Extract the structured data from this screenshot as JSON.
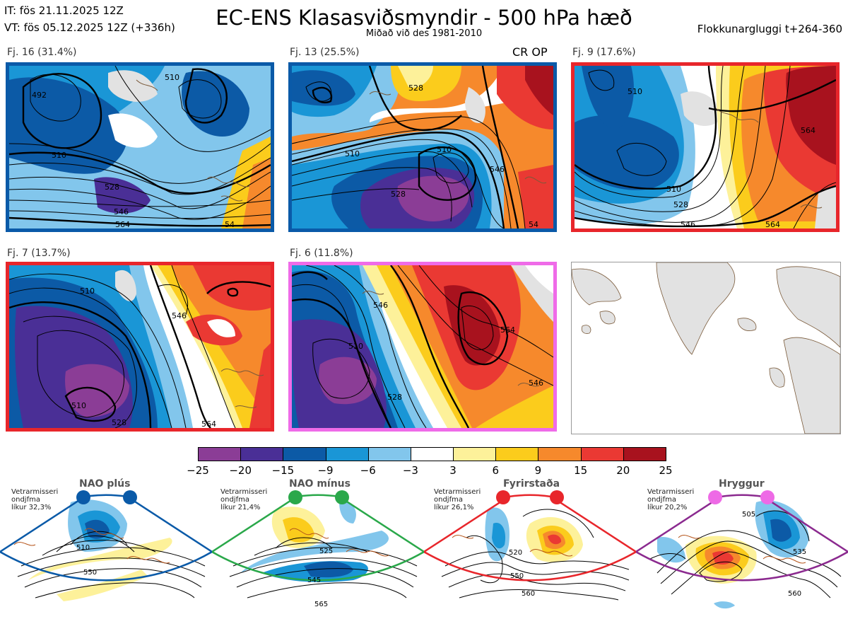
{
  "header": {
    "it": "IT: fös 21.11.2025 12Z",
    "vt": "VT: fös 05.12.2025 12Z  (+336h)",
    "title": "EC-ENS Klasasviðsmyndir - 500 hPa hæð",
    "subtitle": "Miðað við des 1981-2010",
    "window": "Flokkunargluggi t+264-360"
  },
  "panels": [
    {
      "label": "Fj. 16 (31.4%)",
      "frame_color": "#0a5aa8",
      "contours": [
        "492",
        "510",
        "510",
        "528",
        "546",
        "564",
        "54"
      ]
    },
    {
      "label": "Fj. 13 (25.5%)",
      "frame_color": "#0a5aa8",
      "extra": "CR OP",
      "contours": [
        "510",
        "510",
        "528",
        "546",
        "54",
        "528"
      ]
    },
    {
      "label": "Fj. 9 (17.6%)",
      "frame_color": "#e8262b",
      "contours": [
        "510",
        "510",
        "528",
        "546",
        "564",
        "564"
      ]
    },
    {
      "label": "Fj. 7 (13.7%)",
      "frame_color": "#e8262b",
      "contours": [
        "510",
        "510",
        "528",
        "546",
        "564"
      ]
    },
    {
      "label": "Fj. 6 (11.8%)",
      "frame_color": "#ef6be8",
      "contours": [
        "510",
        "528",
        "546",
        "564",
        "546"
      ]
    }
  ],
  "colorbar": {
    "colors": [
      "#8b3d96",
      "#4a2f96",
      "#0c5aa6",
      "#1a96d6",
      "#82c6ec",
      "#ffffff",
      "#fdf19a",
      "#fbcc1c",
      "#f6892c",
      "#ea3933",
      "#a8121e"
    ],
    "labels": [
      "−25",
      "−20",
      "−15",
      "−9",
      "−6",
      "−3",
      "3",
      "6",
      "9",
      "15",
      "20",
      "25"
    ]
  },
  "regimes": [
    {
      "title": "NAO plús",
      "text": [
        "Vetrarmisseri",
        "ondjfma",
        "líkur 32,3%"
      ],
      "color": "#0a5aa8",
      "contours": [
        "510",
        "550"
      ]
    },
    {
      "title": "NAO mínus",
      "text": [
        "Vetrarmisseri",
        "ondjfma",
        "líkur 21,4%"
      ],
      "color": "#2aa84a",
      "contours": [
        "525",
        "545",
        "565"
      ]
    },
    {
      "title": "Fyrirstaða",
      "text": [
        "Vetrarmisseri",
        "ondjfma",
        "líkur 26,1%"
      ],
      "color": "#e8262b",
      "contours": [
        "520",
        "550",
        "560"
      ]
    },
    {
      "title": "Hryggur",
      "text": [
        "Vetrarmisseri",
        "ondjfma",
        "líkur 20,2%"
      ],
      "color": "#ee6ae6",
      "contours": [
        "505",
        "535",
        "560"
      ]
    }
  ]
}
